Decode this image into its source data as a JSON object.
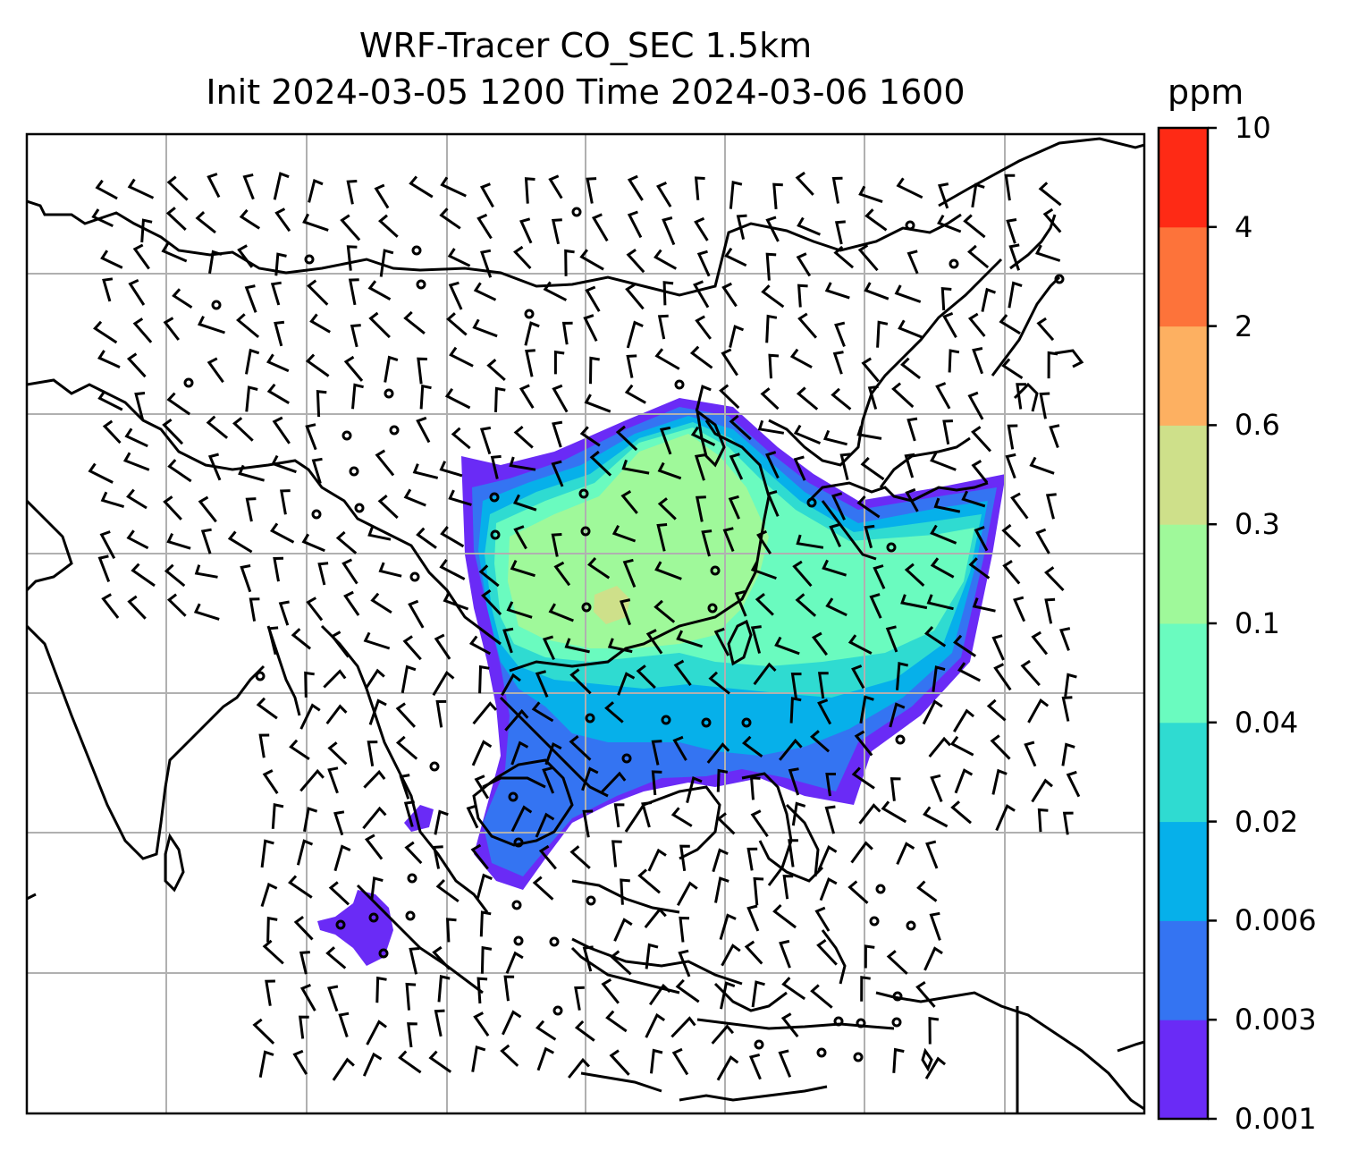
{
  "title": {
    "line1": "WRF-Tracer CO_SEC 1.5km",
    "line2": "Init 2024-03-05 1200 Time 2024-03-06 1600"
  },
  "colorbar": {
    "unit": "ppm",
    "ticks": [
      "0.001",
      "0.003",
      "0.006",
      "0.02",
      "0.04",
      "0.1",
      "0.3",
      "0.6",
      "2",
      "4",
      "10"
    ],
    "colors": [
      "#6a2bf6",
      "#3474f2",
      "#06b0ea",
      "#2fdbd1",
      "#6afbbf",
      "#9ff99a",
      "#cee08a",
      "#fdb061",
      "#fd733a",
      "#fe2a15"
    ]
  },
  "map": {
    "land_line_color": "#000000",
    "grid_color": "#b0b0b0",
    "barb_color": "#000000"
  }
}
